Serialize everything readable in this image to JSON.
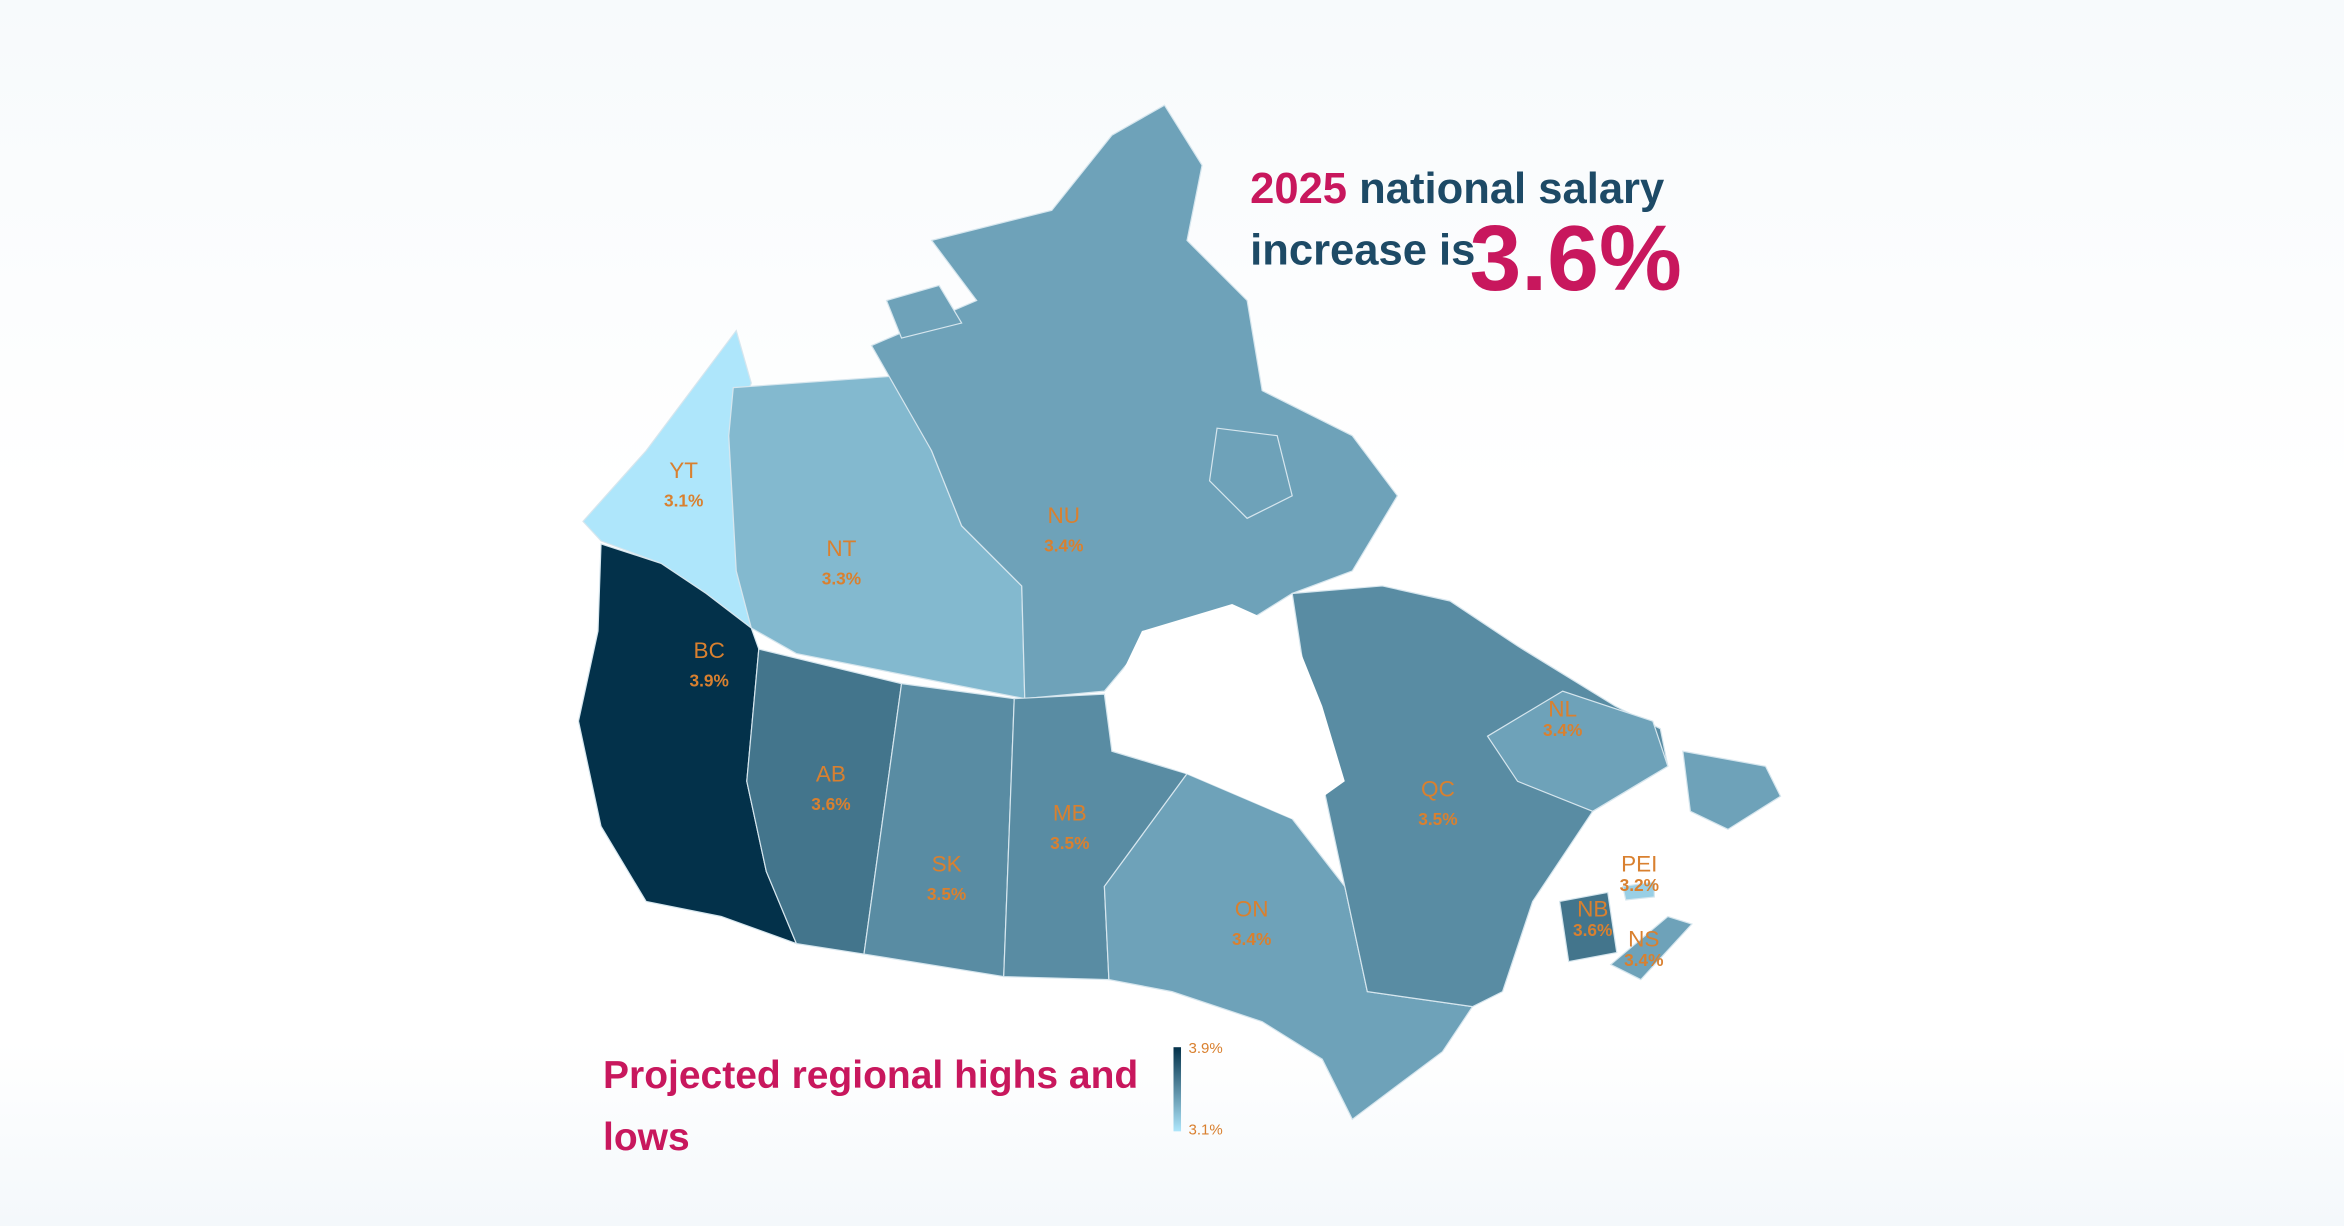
{
  "title": {
    "year": "2025",
    "line1": "national salary",
    "line2": "increase is",
    "headline": "3.6%"
  },
  "subtitle": "Projected regional highs and lows",
  "legend": {
    "high": "3.9%",
    "low": "3.1%"
  },
  "regions": [
    {
      "code": "YT",
      "value": "3.1%"
    },
    {
      "code": "NT",
      "value": "3.3%"
    },
    {
      "code": "NU",
      "value": "3.4%"
    },
    {
      "code": "BC",
      "value": "3.9%"
    },
    {
      "code": "AB",
      "value": "3.6%"
    },
    {
      "code": "SK",
      "value": "3.5%"
    },
    {
      "code": "MB",
      "value": "3.5%"
    },
    {
      "code": "ON",
      "value": "3.4%"
    },
    {
      "code": "QC",
      "value": "3.5%"
    },
    {
      "code": "NL",
      "value": "3.4%"
    },
    {
      "code": "NB",
      "value": "3.6%"
    },
    {
      "code": "PEI",
      "value": "3.2%"
    },
    {
      "code": "NS",
      "value": "3.4%"
    }
  ]
}
